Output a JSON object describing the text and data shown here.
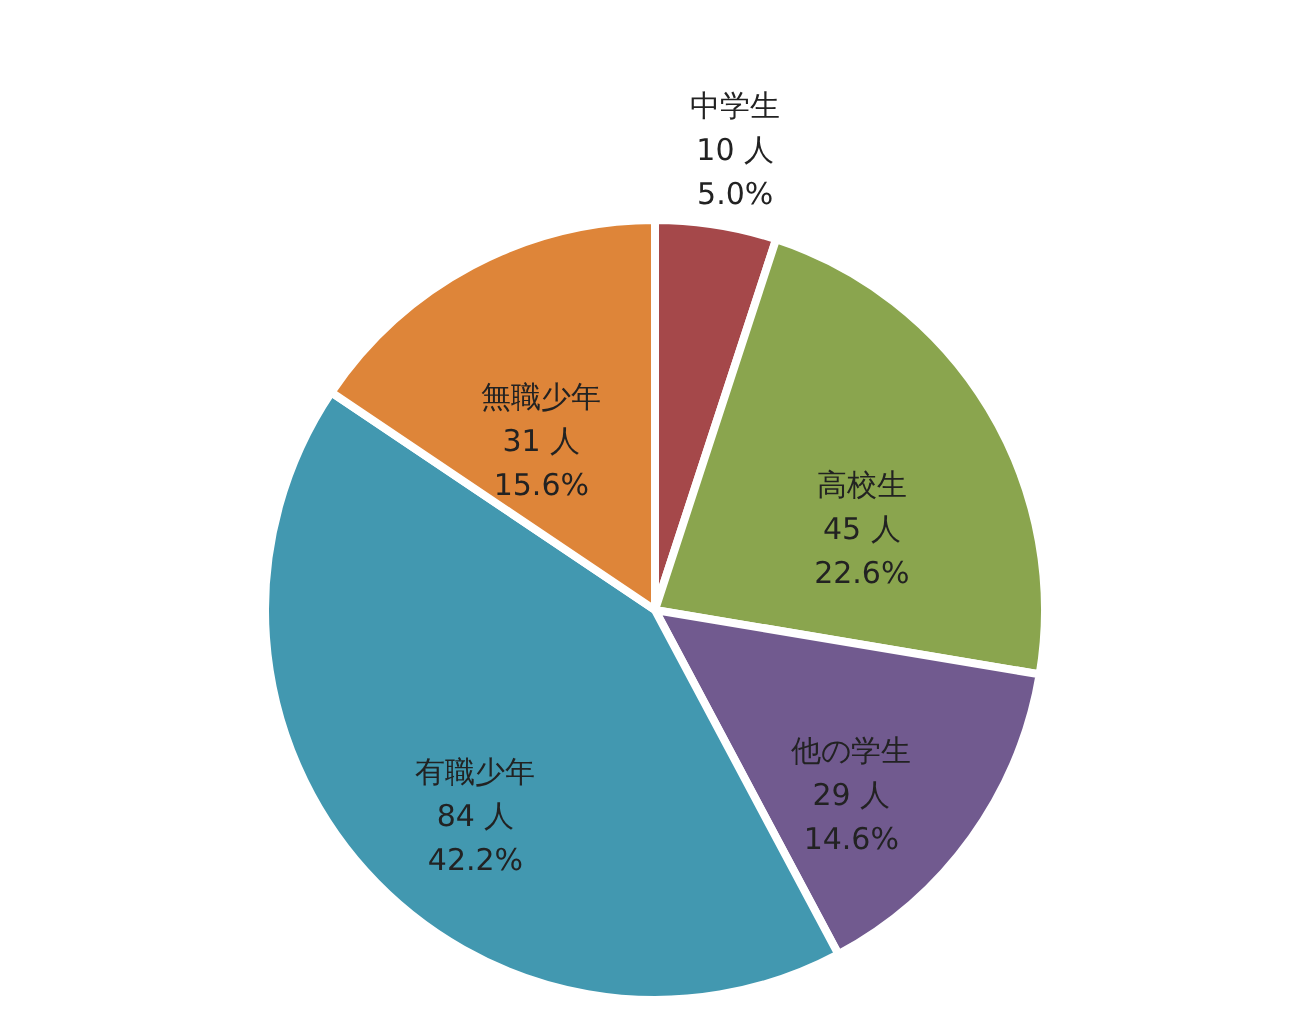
{
  "chart_data": {
    "type": "pie",
    "categories": [
      "中学生",
      "高校生",
      "他の学生",
      "有職少年",
      "無職少年"
    ],
    "values": [
      10,
      45,
      29,
      84,
      31
    ],
    "colors": [
      "#a5484a",
      "#8aa54e",
      "#715a8f",
      "#4298b0",
      "#de8539"
    ],
    "value_labels": [
      "10 人\n5.0%",
      "45 人\n22.6%",
      "29 人\n14.6%",
      "84 人\n42.2%",
      "31 人\n15.6%"
    ]
  }
}
